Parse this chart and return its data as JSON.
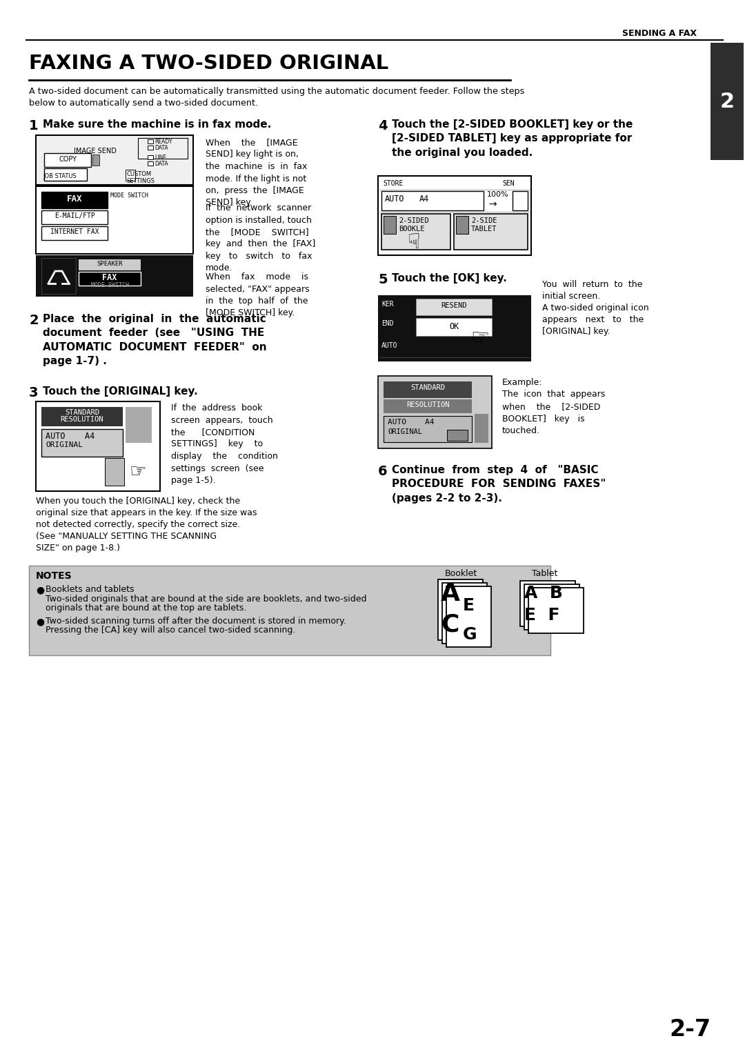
{
  "header": "SENDING A FAX",
  "title": "FAXING A TWO-SIDED ORIGINAL",
  "intro": "A two-sided document can be automatically transmitted using the automatic document feeder. Follow the steps\nbelow to automatically send a two-sided document.",
  "step1_heading": "Make sure the machine is in fax mode.",
  "step1_p1": "When    the    [IMAGE\nSEND] key light is on,\nthe  machine  is  in  fax\nmode. If the light is not\non,  press  the  [IMAGE\nSEND] key.",
  "step1_p2": "If  the  network  scanner\noption is installed, touch\nthe    [MODE    SWITCH]\nkey  and  then  the  [FAX]\nkey   to   switch   to   fax\nmode.",
  "step1_p3": "When    fax    mode    is\nselected, \"FAX\" appears\nin  the  top  half  of  the\n[MODE SWITCH] key.",
  "step2_heading": "Place  the  original  in  the  automatic\ndocument  feeder  (see   \"USING  THE\nAUTOMATIC  DOCUMENT  FEEDER\"  on\npage 1-7) .",
  "step3_heading": "Touch the [ORIGINAL] key.",
  "step3_col2": "If  the  address  book\nscreen  appears,  touch\nthe      [CONDITION\nSETTINGS]    key    to\ndisplay    the    condition\nsettings  screen  (see\npage 1-5).",
  "step3_note": "When you touch the [ORIGINAL] key, check the\noriginal size that appears in the key. If the size was\nnot detected correctly, specify the correct size.\n(See \"MANUALLY SETTING THE SCANNING\nSIZE\" on page 1-8.)",
  "step4_heading": "Touch the [2-SIDED BOOKLET] key or the\n[2-SIDED TABLET] key as appropriate for\nthe original you loaded.",
  "step5_heading": "Touch the [OK] key.",
  "step5_col2": "You  will  return  to  the\ninitial screen.\nA two-sided original icon\nappears   next   to   the\n[ORIGINAL] key.",
  "step5_note": "Example:\nThe  icon  that  appears\nwhen    the    [2-SIDED\nBOOKLET]   key   is\ntouched.",
  "step6_heading": "Continue  from  step  4  of   \"BASIC\nPROCEDURE  FOR  SENDING  FAXES\"\n(pages 2-2 to 2-3).",
  "notes_title": "NOTES",
  "note1_head": "Booklets and tablets",
  "note1_body": "Two-sided originals that are bound at the side are booklets, and two-sided\n   originals that are bound at the top are tablets.",
  "note2_body": "Two-sided scanning turns off after the document is stored in memory.\n   Pressing the [CA] key will also cancel two-sided scanning.",
  "booklet_label": "Booklet",
  "tablet_label": "Tablet",
  "page_num": "2-7",
  "chapter_num": "2"
}
